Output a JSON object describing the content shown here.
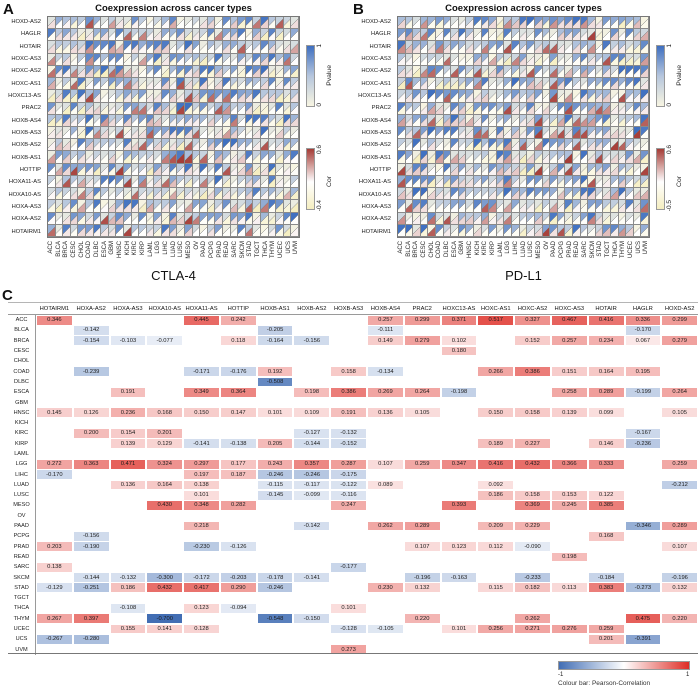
{
  "colors": {
    "pvalue_low": "#f8f5e2",
    "pvalue_mid": "#b6c6dd",
    "pvalue_high": "#3e6fc0",
    "cor_low": "#f5eec0",
    "cor_zero": "#ffffff",
    "cor_high": "#a53c36",
    "table_pos": "#de2d26",
    "table_neg": "#426eb4",
    "grid_line": "#8a8a8a"
  },
  "chart_data": [
    {
      "type": "heatmap",
      "panel_letter": "A",
      "title": "Coexpression across cancer types",
      "xlabel": "CTLA-4",
      "rows": [
        "HOXD-AS2",
        "HAGLR",
        "HOTAIR",
        "HOXC-AS3",
        "HOXC-AS2",
        "HOXC-AS1",
        "HOXC13-AS",
        "PRAC2",
        "HOXB-AS4",
        "HOXB-AS3",
        "HOXB-AS2",
        "HOXB-AS1",
        "HOTTIP",
        "HOXA11-AS",
        "HOXA10-AS",
        "HOXA-AS3",
        "HOXA-AS2",
        "HOTAIRM1"
      ],
      "columns": [
        "ACC",
        "BLCA",
        "BRCA",
        "CESC",
        "CHOL",
        "COAD",
        "DLBC",
        "ESCA",
        "GBM",
        "HNSC",
        "KICH",
        "KIRC",
        "KIRP",
        "LAML",
        "LGG",
        "LIHC",
        "LUAD",
        "LUSC",
        "MESO",
        "OV",
        "PAAD",
        "PCPG",
        "PRAD",
        "READ",
        "SARC",
        "SKCM",
        "STAD",
        "TGCT",
        "THCA",
        "THYM",
        "UCEC",
        "UCS",
        "UVM"
      ],
      "legend": {
        "pvalue": {
          "label": "Pvalue",
          "max": "1",
          "min": "0"
        },
        "cor": {
          "label": "Cor",
          "max": "0.6",
          "min": "-0.4"
        }
      },
      "cells_note": "per-cell triangle values illegible in source; rendered procedurally",
      "seed": 1337
    },
    {
      "type": "heatmap",
      "panel_letter": "B",
      "title": "Coexpression across cancer types",
      "xlabel": "PD-L1",
      "rows": [
        "HOXD-AS2",
        "HAGLR",
        "HOTAIR",
        "HOXC-AS3",
        "HOXC-AS2",
        "HOXC-AS1",
        "HOXC13-AS",
        "PRAC2",
        "HOXB-AS4",
        "HOXB-AS3",
        "HOXB-AS2",
        "HOXB-AS1",
        "HOTTIP",
        "HOXA11-AS",
        "HOXA10-AS",
        "HOXA-AS3",
        "HOXA-AS2",
        "HOTAIRM1"
      ],
      "columns": [
        "ACC",
        "BLCA",
        "BRCA",
        "CESC",
        "CHOL",
        "COAD",
        "DLBC",
        "ESCA",
        "GBM",
        "HNSC",
        "KICH",
        "KIRC",
        "KIRP",
        "LAML",
        "LGG",
        "LIHC",
        "LUAD",
        "LUSC",
        "MESO",
        "OV",
        "PAAD",
        "PCPG",
        "PRAD",
        "READ",
        "SARC",
        "SKCM",
        "STAD",
        "TGCT",
        "THCA",
        "THYM",
        "UCEC",
        "UCS",
        "UVM"
      ],
      "legend": {
        "pvalue": {
          "label": "Pvalue",
          "max": "1",
          "min": "0"
        },
        "cor": {
          "label": "Cor",
          "max": "0.6",
          "min": "-0.5"
        }
      },
      "cells_note": "per-cell triangle values illegible in source; rendered procedurally",
      "seed": 4242
    },
    {
      "type": "table",
      "panel_letter": "C",
      "columns": [
        "HOTAIRM1",
        "HOXA-AS2",
        "HOXA-AS3",
        "HOXA10-AS",
        "HOXA11-AS",
        "HOTTIP",
        "HOXB-AS1",
        "HOXB-AS2",
        "HOXB-AS3",
        "HOXB-AS4",
        "PRAC2",
        "HOXC13-AS",
        "HOXC-AS1",
        "HOXC-AS2",
        "HOXC-AS3",
        "HOTAIR",
        "HAGLR",
        "HOXD-AS2"
      ],
      "row_labels": [
        "ACC",
        "BLCA",
        "BRCA",
        "CESC",
        "CHOL",
        "COAD",
        "DLBC",
        "ESCA",
        "GBM",
        "HNSC",
        "KICH",
        "KIRC",
        "KIRP",
        "LAML",
        "LGG",
        "LIHC",
        "LUAD",
        "LUSC",
        "MESO",
        "OV",
        "PAAD",
        "PCPG",
        "PRAD",
        "READ",
        "SARC",
        "SKCM",
        "STAD",
        "TGCT",
        "THCA",
        "THYM",
        "UCEC",
        "UCS",
        "UVM"
      ],
      "values": [
        [
          0.346,
          null,
          null,
          null,
          0.445,
          0.242,
          null,
          null,
          null,
          0.257,
          0.299,
          0.371,
          0.517,
          0.327,
          0.467,
          0.416,
          0.336,
          0.299
        ],
        [
          null,
          -0.142,
          null,
          null,
          null,
          null,
          -0.205,
          null,
          null,
          -0.111,
          null,
          null,
          null,
          null,
          null,
          null,
          -0.17,
          null
        ],
        [
          null,
          -0.154,
          -0.103,
          -0.077,
          null,
          0.118,
          -0.164,
          -0.156,
          null,
          0.149,
          0.279,
          0.102,
          null,
          0.152,
          0.257,
          0.234,
          0.067,
          0.279
        ],
        [
          null,
          null,
          null,
          null,
          null,
          null,
          null,
          null,
          null,
          null,
          null,
          0.18,
          null,
          null,
          null,
          null,
          null,
          null
        ],
        [
          null,
          null,
          null,
          null,
          null,
          null,
          null,
          null,
          null,
          null,
          null,
          null,
          null,
          null,
          null,
          null,
          null,
          null
        ],
        [
          null,
          -0.239,
          null,
          null,
          -0.171,
          -0.176,
          0.192,
          null,
          0.158,
          -0.134,
          null,
          null,
          0.266,
          0.386,
          0.151,
          0.164,
          0.195,
          null
        ],
        [
          null,
          null,
          null,
          null,
          null,
          null,
          -0.508,
          null,
          null,
          null,
          null,
          null,
          null,
          null,
          null,
          null,
          null,
          null
        ],
        [
          null,
          null,
          0.191,
          null,
          0.349,
          0.364,
          null,
          0.198,
          0.386,
          0.269,
          0.264,
          -0.198,
          null,
          null,
          0.258,
          0.289,
          -0.199,
          0.264
        ],
        [
          null,
          null,
          null,
          null,
          null,
          null,
          null,
          null,
          null,
          null,
          null,
          null,
          null,
          null,
          null,
          null,
          null,
          null
        ],
        [
          0.145,
          0.126,
          0.236,
          0.168,
          0.15,
          0.147,
          0.101,
          0.109,
          0.191,
          0.136,
          0.105,
          null,
          0.15,
          0.158,
          0.139,
          0.099,
          null,
          0.105
        ],
        [
          null,
          null,
          null,
          null,
          null,
          null,
          null,
          null,
          null,
          null,
          null,
          null,
          null,
          null,
          null,
          null,
          null,
          null
        ],
        [
          null,
          0.2,
          0.154,
          0.201,
          null,
          null,
          null,
          -0.127,
          -0.132,
          null,
          null,
          null,
          null,
          null,
          null,
          null,
          -0.167,
          null
        ],
        [
          null,
          null,
          0.139,
          0.129,
          -0.141,
          -0.138,
          0.205,
          -0.144,
          -0.152,
          null,
          null,
          null,
          0.189,
          0.227,
          null,
          0.146,
          -0.236,
          null
        ],
        [
          null,
          null,
          null,
          null,
          null,
          null,
          null,
          null,
          null,
          null,
          null,
          null,
          null,
          null,
          null,
          null,
          null,
          null
        ],
        [
          0.272,
          0.363,
          0.471,
          0.324,
          0.297,
          0.177,
          0.243,
          0.357,
          0.287,
          0.107,
          0.259,
          0.347,
          0.416,
          0.432,
          0.366,
          0.333,
          null,
          0.259
        ],
        [
          -0.17,
          null,
          null,
          null,
          0.197,
          0.187,
          -0.246,
          -0.246,
          -0.175,
          null,
          null,
          null,
          null,
          null,
          null,
          null,
          null,
          null
        ],
        [
          null,
          null,
          0.136,
          0.164,
          0.138,
          null,
          -0.115,
          -0.117,
          -0.122,
          0.089,
          null,
          null,
          0.092,
          null,
          null,
          null,
          null,
          -0.212
        ],
        [
          null,
          null,
          null,
          null,
          0.101,
          null,
          -0.145,
          -0.099,
          -0.116,
          null,
          null,
          null,
          0.186,
          0.158,
          0.153,
          0.122,
          null,
          null
        ],
        [
          null,
          null,
          null,
          0.43,
          0.348,
          0.282,
          null,
          null,
          0.247,
          null,
          null,
          0.393,
          null,
          0.369,
          0.245,
          0.385,
          null,
          null
        ],
        [
          null,
          null,
          null,
          null,
          null,
          null,
          null,
          null,
          null,
          null,
          null,
          null,
          null,
          null,
          null,
          null,
          null,
          null
        ],
        [
          null,
          null,
          null,
          null,
          0.218,
          null,
          null,
          -0.142,
          null,
          0.262,
          0.289,
          null,
          0.209,
          0.229,
          null,
          null,
          -0.346,
          0.289
        ],
        [
          null,
          -0.156,
          null,
          null,
          null,
          null,
          null,
          null,
          null,
          null,
          null,
          null,
          null,
          null,
          null,
          0.168,
          null,
          null
        ],
        [
          0.203,
          -0.19,
          null,
          null,
          -0.23,
          -0.126,
          null,
          null,
          null,
          null,
          0.107,
          0.123,
          0.112,
          -0.09,
          null,
          null,
          null,
          0.107
        ],
        [
          null,
          null,
          null,
          null,
          null,
          null,
          null,
          null,
          null,
          null,
          null,
          null,
          null,
          null,
          0.198,
          null,
          null,
          null
        ],
        [
          0.138,
          null,
          null,
          null,
          null,
          null,
          null,
          null,
          -0.177,
          null,
          null,
          null,
          null,
          null,
          null,
          null,
          null,
          null
        ],
        [
          null,
          -0.144,
          -0.132,
          -0.3,
          -0.172,
          -0.203,
          -0.178,
          -0.141,
          null,
          null,
          -0.196,
          -0.163,
          null,
          -0.233,
          null,
          -0.184,
          null,
          -0.196
        ],
        [
          -0.129,
          -0.251,
          0.186,
          0.432,
          0.417,
          0.29,
          -0.246,
          null,
          null,
          0.23,
          0.132,
          null,
          0.115,
          0.182,
          0.113,
          0.383,
          -0.273,
          0.132
        ],
        [
          null,
          null,
          null,
          null,
          null,
          null,
          null,
          null,
          null,
          null,
          null,
          null,
          null,
          null,
          null,
          null,
          null,
          null
        ],
        [
          null,
          null,
          -0.108,
          null,
          0.123,
          -0.094,
          null,
          null,
          0.101,
          null,
          null,
          null,
          null,
          null,
          null,
          null,
          null,
          null
        ],
        [
          0.267,
          0.397,
          null,
          -0.7,
          null,
          null,
          -0.548,
          -0.15,
          null,
          null,
          0.22,
          null,
          null,
          0.262,
          null,
          null,
          0.475,
          0.22
        ],
        [
          null,
          null,
          0.155,
          0.141,
          0.128,
          null,
          null,
          null,
          -0.128,
          -0.105,
          null,
          0.101,
          0.256,
          0.271,
          0.276,
          0.259,
          null,
          null
        ],
        [
          -0.267,
          -0.28,
          null,
          null,
          null,
          null,
          null,
          null,
          null,
          null,
          null,
          null,
          null,
          null,
          null,
          0.201,
          -0.391,
          null
        ],
        [
          null,
          null,
          null,
          null,
          null,
          null,
          null,
          null,
          0.273,
          null,
          null,
          null,
          null,
          null,
          null,
          null,
          null,
          null
        ]
      ],
      "colorbar": {
        "min": "-1",
        "max": "1",
        "caption": "Colour bar: Pearson-Correlation"
      }
    }
  ]
}
